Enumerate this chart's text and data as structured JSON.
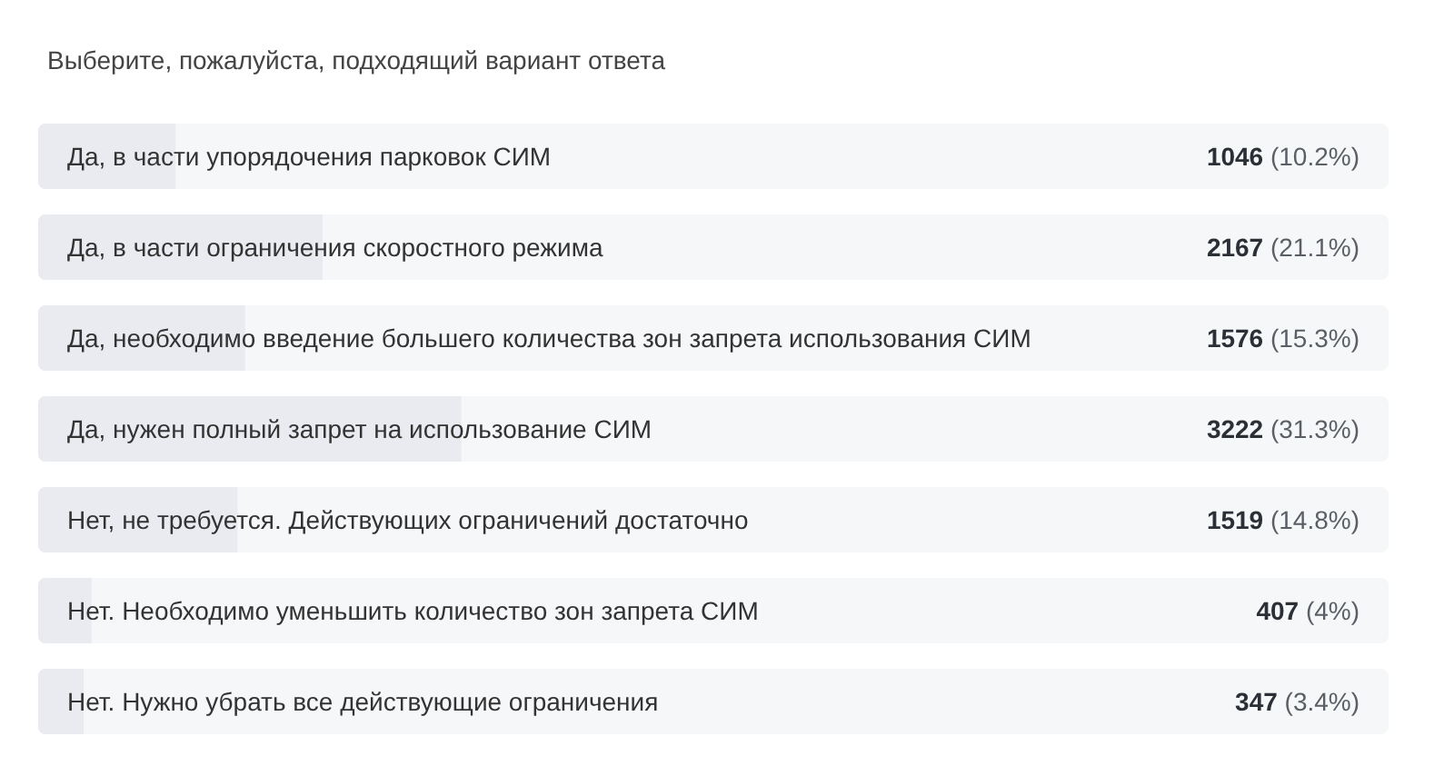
{
  "chart_data": {
    "type": "bar",
    "orientation": "horizontal",
    "title": "Выберите, пожалуйста, подходящий вариант ответа",
    "categories": [
      "Да, в части упорядочения парковок СИМ",
      "Да, в части ограничения скоростного режима",
      "Да, необходимо введение большего количества зон запрета использования СИМ",
      "Да, нужен полный запрет на использование СИМ",
      "Нет, не требуется. Действующих ограничений достаточно",
      "Нет. Необходимо уменьшить количество зон запрета СИМ",
      "Нет. Нужно убрать все действующие ограничения"
    ],
    "values": [
      1046,
      2167,
      1576,
      3222,
      1519,
      407,
      347
    ],
    "value_labels": [
      "1046 (10.2%)",
      "2167 (21.1%)",
      "1576 (15.3%)",
      "3222 (31.3%)",
      "1519 (14.8%)",
      "407 (4%)",
      "347 (3.4%)"
    ],
    "color": "#e9ebf0",
    "tick_labels": "y"
  }
}
